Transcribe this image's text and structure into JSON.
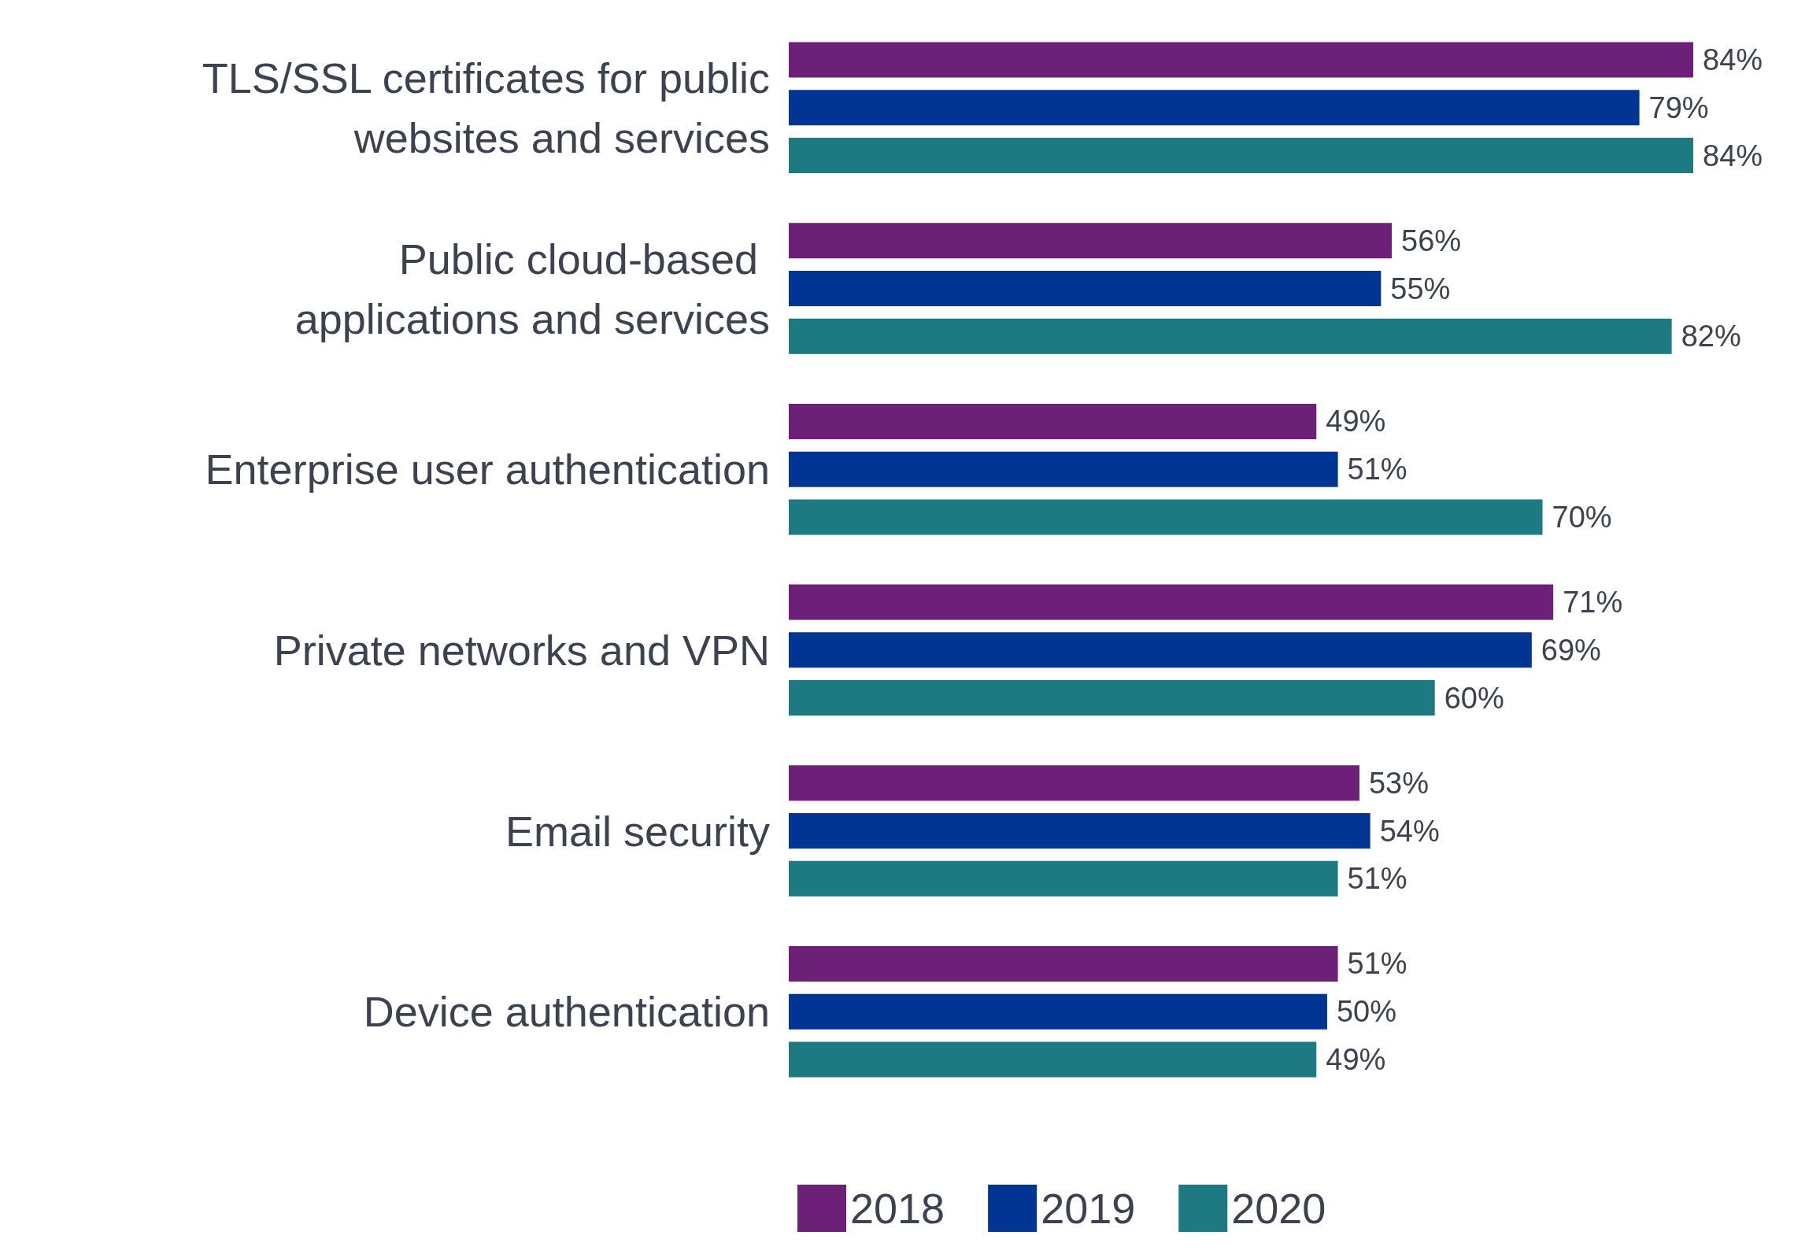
{
  "chart_data": {
    "type": "bar",
    "orientation": "horizontal",
    "categories": [
      "TLS/SSL certificates for public websites and services",
      "Public cloud-based applications and services",
      "Enterprise user authentication",
      "Private networks and VPN",
      "Email security",
      "Device authentication"
    ],
    "series": [
      {
        "name": "2018",
        "color": "#6d2077",
        "values": [
          84,
          56,
          49,
          71,
          53,
          51
        ],
        "value_labels": [
          "84%",
          "56%",
          "49%",
          "71%",
          "53%",
          "51%"
        ]
      },
      {
        "name": "2019",
        "color": "#003594",
        "values": [
          79,
          55,
          51,
          69,
          54,
          50
        ],
        "value_labels": [
          "79%",
          "55%",
          "51%",
          "69%",
          "54%",
          "50%"
        ]
      },
      {
        "name": "2020",
        "color": "#1d7a82",
        "values": [
          84,
          82,
          70,
          60,
          51,
          49
        ],
        "value_labels": [
          "84%",
          "82%",
          "70%",
          "60%",
          "51%",
          "49%"
        ]
      }
    ],
    "legend": "bottom"
  }
}
